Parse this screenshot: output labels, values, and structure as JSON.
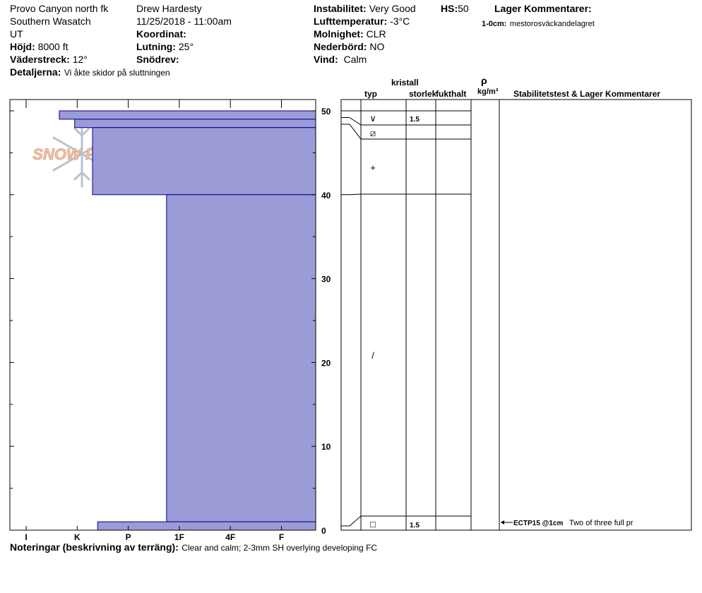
{
  "header": {
    "location": "Provo Canyon north fk",
    "range": "Southern Wasatch",
    "state": "UT",
    "elevation_label": "Höjd:",
    "elevation_value": "8000 ft",
    "aspect_label": "Väderstreck:",
    "aspect_value": "12°",
    "details_label": "Detaljerna:",
    "details_value": "Vi åkte skidor på sluttningen",
    "observer": "Drew Hardesty",
    "datetime": "11/25/2018 - 11:00am",
    "coord_label": "Koordinat:",
    "coord_value": "",
    "slope_label": "Lutning:",
    "slope_value": "25°",
    "snowdrift_label": "Snödrev:",
    "snowdrift_value": "",
    "stability_label": "Instabilitet:",
    "stability_value": "Very Good",
    "hs_label": "HS:",
    "hs_value": "50",
    "airtemp_label": "Lufttemperatur:",
    "airtemp_value": "-3°C",
    "cloud_label": "Molnighet:",
    "cloud_value": "CLR",
    "precip_label": "Nederbörd:",
    "precip_value": "NO",
    "wind_label": "Vind:",
    "wind_value": "Calm",
    "layer_comments_title": "Lager Kommentarer:",
    "layer_comment_range": "1-0cm:",
    "layer_comment_text": "mestorosväckandelagret"
  },
  "logo": {
    "text": "SNOW PILOT"
  },
  "table": {
    "col_typ": "typ",
    "col_kristall": "kristall",
    "col_storlek": "storlek",
    "col_fukthalt": "fukthalt",
    "col_rho": "ρ",
    "col_density_unit": "kg/m³",
    "col_stability": "Stabilitetstest & Lager Kommentarer"
  },
  "chart_data": {
    "type": "snow-profile",
    "y_ticks": [
      "0",
      "10",
      "20",
      "30",
      "40",
      "50"
    ],
    "ylim": [
      0,
      50
    ],
    "hardness_scale": [
      "I",
      "K",
      "P",
      "1F",
      "4F",
      "F"
    ],
    "hardness_layers": [
      {
        "top": 50,
        "bottom": 49,
        "hardness_index": 0.65
      },
      {
        "top": 49,
        "bottom": 48,
        "hardness_index": 0.95
      },
      {
        "top": 48,
        "bottom": 40,
        "hardness_index": 1.3
      },
      {
        "top": 40,
        "bottom": 1,
        "hardness_index": 2.75
      },
      {
        "top": 1,
        "bottom": 0,
        "hardness_index": 1.4
      }
    ],
    "layer_rows": [
      {
        "depth": 49,
        "grain": "∨",
        "size": "1.5"
      },
      {
        "depth": 47,
        "grain": "⧄",
        "size": ""
      },
      {
        "depth": 43,
        "grain": "+",
        "size": ""
      },
      {
        "depth": 21,
        "grain": "/",
        "size": ""
      },
      {
        "depth": 0.7,
        "grain": "□",
        "size": "1.5"
      }
    ],
    "test_result_code": "ECTP15 @1cm",
    "test_result_text": "Two of three full pr"
  },
  "notes": {
    "label": "Noteringar (beskrivning av terräng):",
    "text": "Clear and calm; 2-3mm SH overlying developing FC"
  },
  "colors": {
    "layer_fill": "#9b9bd7",
    "layer_stroke": "#00008b"
  }
}
